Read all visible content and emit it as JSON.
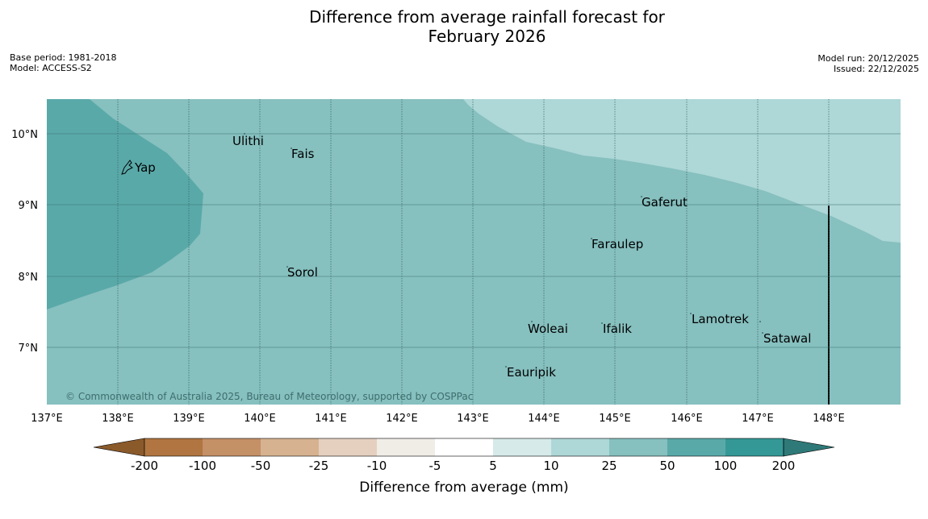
{
  "title_line1": "Difference from average rainfall forecast for",
  "title_line2": "February 2026",
  "meta_left": {
    "base_period": "Base period: 1981-2018",
    "model": "Model: ACCESS-S2"
  },
  "meta_right": {
    "model_run": "Model run: 20/12/2025",
    "issued": "Issued: 22/12/2025"
  },
  "map": {
    "lon_ticks": [
      "137°E",
      "138°E",
      "139°E",
      "140°E",
      "141°E",
      "142°E",
      "143°E",
      "144°E",
      "145°E",
      "146°E",
      "147°E",
      "148°E"
    ],
    "lat_ticks": [
      "10°N",
      "9°N",
      "8°N",
      "7°N"
    ],
    "places": [
      {
        "name": "Yap"
      },
      {
        "name": "Ulithi"
      },
      {
        "name": "Fais"
      },
      {
        "name": "Gaferut"
      },
      {
        "name": "Faraulep"
      },
      {
        "name": "Sorol"
      },
      {
        "name": "Lamotrek"
      },
      {
        "name": "Woleai"
      },
      {
        "name": "Ifalik"
      },
      {
        "name": "Satawal"
      },
      {
        "name": "Eauripik"
      }
    ],
    "copyright": "© Commonwealth of Australia 2025, Bureau of Meteorology, supported by COSPPac"
  },
  "colorbar": {
    "labels": [
      "-200",
      "-100",
      "-50",
      "-25",
      "-10",
      "-5",
      "5",
      "10",
      "25",
      "50",
      "100",
      "200"
    ],
    "colors": [
      "#8b5a2b",
      "#b07540",
      "#c49066",
      "#d6b290",
      "#e5d0bf",
      "#f0ece6",
      "#ffffff",
      "#d6eaea",
      "#aed7d7",
      "#86c0bf",
      "#5aa9a9",
      "#349896",
      "#2f7a78"
    ],
    "title": "Difference from average (mm)"
  },
  "legend_colors": {
    "band_100": "#5aa9a9",
    "band_50": "#86c0bf",
    "band_25": "#aed7d7"
  }
}
